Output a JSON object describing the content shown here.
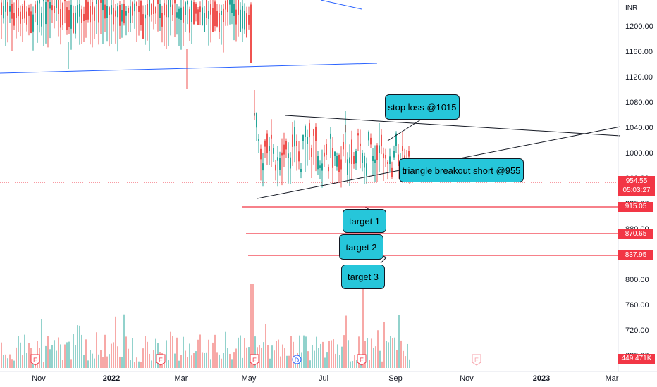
{
  "chart_data": {
    "type": "candlestick",
    "currency": "INR",
    "y_ticks": [
      "1200.00",
      "1160.00",
      "1120.00",
      "1080.00",
      "1040.00",
      "1000.00",
      "960.00",
      "920.00",
      "880.00",
      "840.00",
      "800.00",
      "760.00",
      "720.00",
      "680.00"
    ],
    "x_ticks": [
      "Nov",
      "2022",
      "Mar",
      "May",
      "Jul",
      "Sep",
      "Nov",
      "2023",
      "Mar"
    ],
    "ylim": [
      660,
      1240
    ],
    "last_price": "954.55",
    "countdown": "05:03:27",
    "volume_value": "449.471K",
    "levels": [
      {
        "label": "915.05",
        "value": 915.05
      },
      {
        "label": "870.65",
        "value": 870.65
      },
      {
        "label": "837.95",
        "value": 837.95
      }
    ],
    "earnings_markers": [
      "E",
      "E",
      "E",
      "D",
      "E",
      "E"
    ],
    "annotations": {
      "stop_loss": "stop loss @1015",
      "breakout": "triangle breakout short  @955",
      "target1": "target 1",
      "target2": "target 2",
      "target3": "target 3"
    }
  },
  "colors": {
    "up": "#26a69a",
    "down": "#ef5350",
    "trendline_blue": "#2962ff",
    "level": "#f23645",
    "callout": "#26c6da"
  }
}
